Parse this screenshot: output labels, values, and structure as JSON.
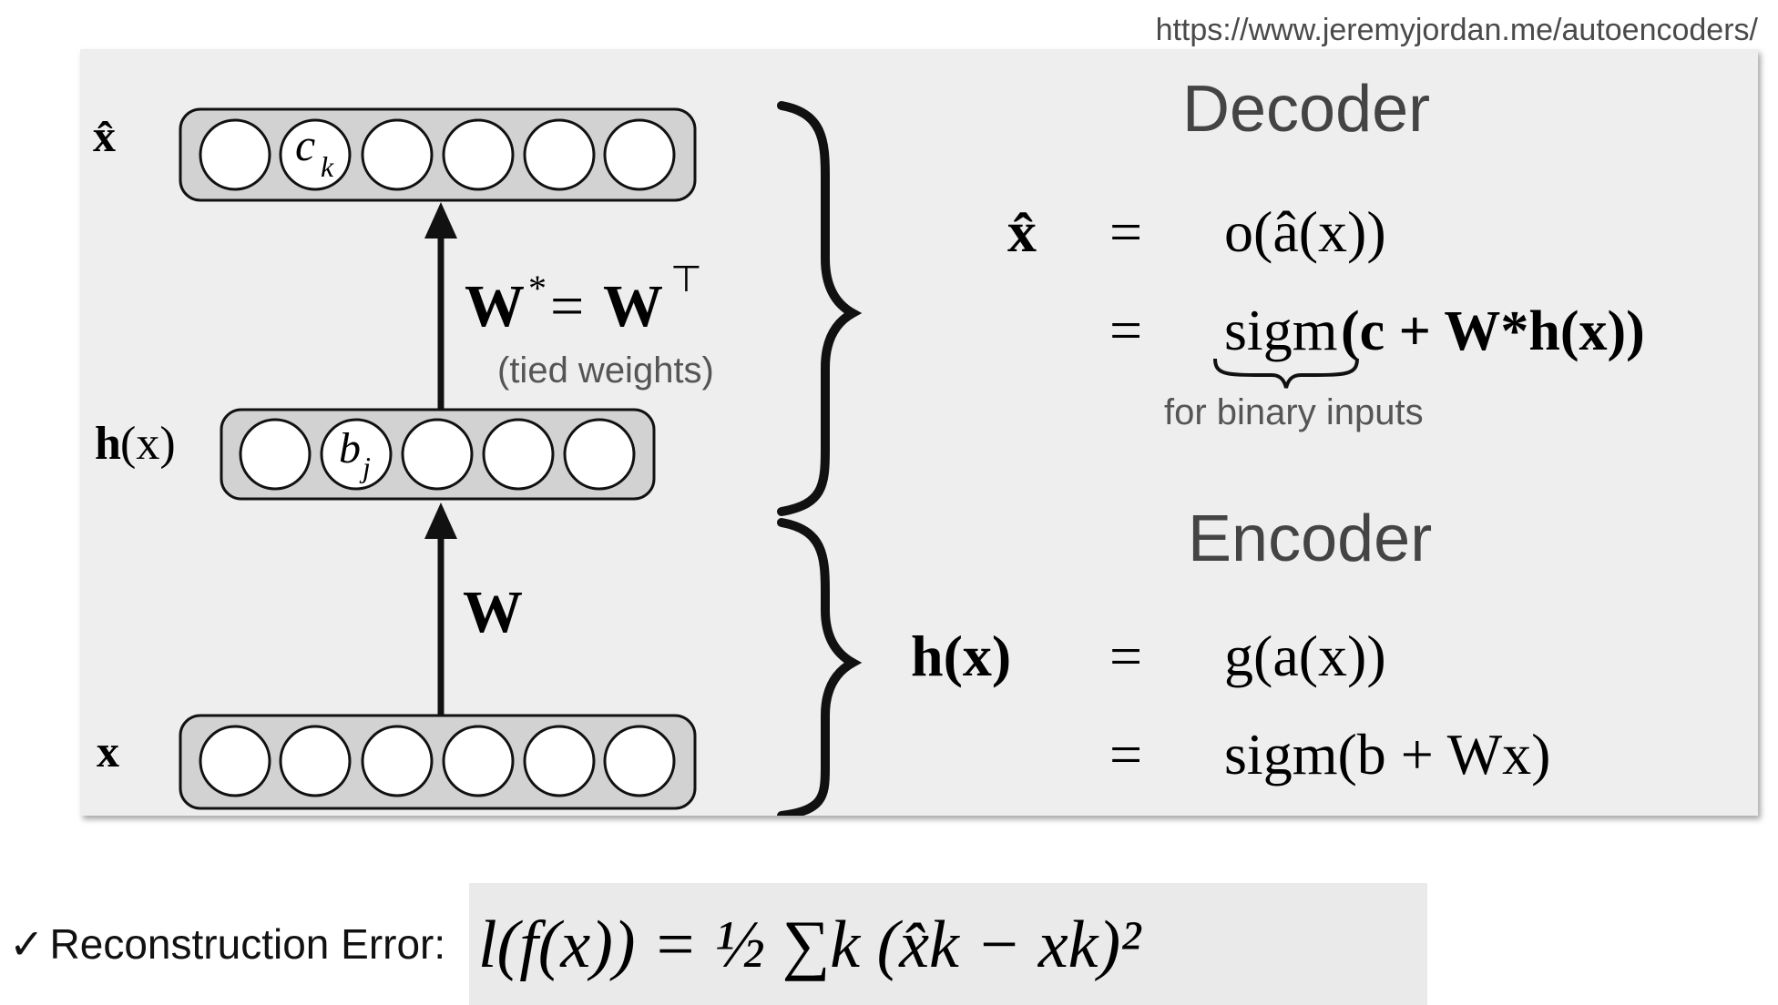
{
  "source_url": "https://www.jeremyjordan.me/autoencoders/",
  "diagram": {
    "layers": {
      "output": {
        "label": "x̂",
        "nodes": [
          "",
          "c",
          "",
          "",
          "",
          ""
        ],
        "node_subscripts": [
          "",
          "k",
          "",
          "",
          "",
          ""
        ]
      },
      "hidden": {
        "label_main": "h",
        "label_arg": "(x)",
        "nodes": [
          "",
          "b",
          "",
          "",
          ""
        ],
        "node_subscripts": [
          "",
          "j",
          "",
          "",
          ""
        ]
      },
      "input": {
        "label": "x",
        "nodes": [
          "",
          "",
          "",
          "",
          "",
          ""
        ]
      }
    },
    "decoder_weight": {
      "lhs": "W",
      "lhs_sup": "*",
      "eq": "=",
      "rhs": "W",
      "rhs_sup": "⊤",
      "note": "(tied weights)"
    },
    "encoder_weight": "W"
  },
  "decoder": {
    "title": "Decoder",
    "line1": {
      "lhs": "x̂",
      "eq": "=",
      "rhs": "o(â(x))"
    },
    "line2": {
      "eq": "=",
      "rhs_func": "sigm",
      "rhs_rest": "(c + W*h(x))"
    },
    "brace_note": "for binary inputs"
  },
  "encoder": {
    "title": "Encoder",
    "line1": {
      "lhs": "h(x)",
      "eq": "=",
      "rhs": "g(a(x))"
    },
    "line2": {
      "eq": "=",
      "rhs": "sigm(b + Wx)"
    }
  },
  "reconstruction": {
    "check": "✓",
    "label": "Reconstruction Error:",
    "formula": "l(f(x)) = ½ ∑k (x̂k − xk)²"
  }
}
